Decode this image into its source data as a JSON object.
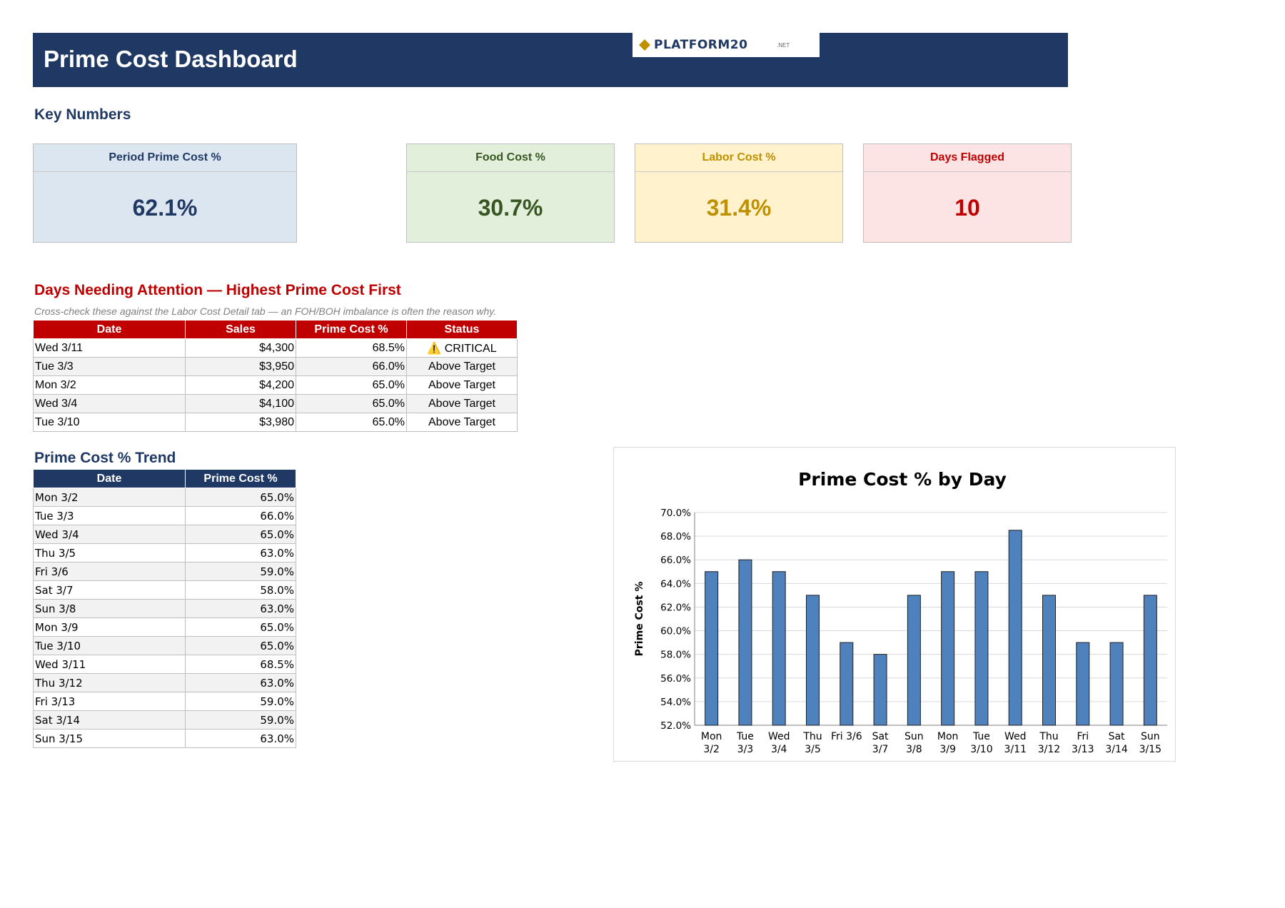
{
  "header": {
    "title": "Prime Cost Dashboard",
    "logo_name": "PLATFORM20",
    "logo_suffix": ".NET",
    "logo_color": "#bf9000"
  },
  "key_numbers": {
    "heading": "Key Numbers",
    "cards": [
      {
        "label": "Period Prime Cost %",
        "value": "62.1%",
        "bg": "#dce6f1",
        "color": "#203864"
      },
      {
        "label": "Food Cost %",
        "value": "30.7%",
        "bg": "#e2efda",
        "color": "#375623"
      },
      {
        "label": "Labor Cost %",
        "value": "31.4%",
        "bg": "#fff2cc",
        "color": "#bf9000"
      },
      {
        "label": "Days Flagged",
        "value": "10",
        "bg": "#fce4e4",
        "color": "#c00000"
      }
    ]
  },
  "attention": {
    "heading": "Days Needing Attention — Highest Prime Cost First",
    "note": "Cross-check these against the Labor Cost Detail tab — an FOH/BOH imbalance is often the reason why.",
    "columns": [
      "Date",
      "Sales",
      "Prime Cost %",
      "Status"
    ],
    "rows": [
      [
        "Wed 3/11",
        "$4,300",
        "68.5%",
        "⚠️ CRITICAL"
      ],
      [
        "Tue 3/3",
        "$3,950",
        "66.0%",
        "Above Target"
      ],
      [
        "Mon 3/2",
        "$4,200",
        "65.0%",
        "Above Target"
      ],
      [
        "Wed 3/4",
        "$4,100",
        "65.0%",
        "Above Target"
      ],
      [
        "Tue 3/10",
        "$3,980",
        "65.0%",
        "Above Target"
      ]
    ]
  },
  "trend": {
    "heading": "Prime Cost % Trend",
    "columns": [
      "Date",
      "Prime Cost %"
    ],
    "rows": [
      [
        "Mon 3/2",
        "65.0%"
      ],
      [
        "Tue 3/3",
        "66.0%"
      ],
      [
        "Wed 3/4",
        "65.0%"
      ],
      [
        "Thu 3/5",
        "63.0%"
      ],
      [
        "Fri 3/6",
        "59.0%"
      ],
      [
        "Sat 3/7",
        "58.0%"
      ],
      [
        "Sun 3/8",
        "63.0%"
      ],
      [
        "Mon 3/9",
        "65.0%"
      ],
      [
        "Tue 3/10",
        "65.0%"
      ],
      [
        "Wed 3/11",
        "68.5%"
      ],
      [
        "Thu 3/12",
        "63.0%"
      ],
      [
        "Fri 3/13",
        "59.0%"
      ],
      [
        "Sat 3/14",
        "59.0%"
      ],
      [
        "Sun 3/15",
        "63.0%"
      ]
    ]
  },
  "chart_data": {
    "type": "bar",
    "title": "Prime Cost % by Day",
    "xlabel": "",
    "ylabel": "Prime Cost %",
    "ylim": [
      52,
      70
    ],
    "ytick_step": 2,
    "ytick_labels": [
      "52.0%",
      "54.0%",
      "56.0%",
      "58.0%",
      "60.0%",
      "62.0%",
      "64.0%",
      "66.0%",
      "68.0%",
      "70.0%"
    ],
    "grid": true,
    "bar_color": "#4f81bd",
    "categories": [
      "Mon 3/2",
      "Tue 3/3",
      "Wed 3/4",
      "Thu 3/5",
      "Fri 3/6",
      "Sat 3/7",
      "Sun 3/8",
      "Mon 3/9",
      "Tue 3/10",
      "Wed 3/11",
      "Thu 3/12",
      "Fri 3/13",
      "Sat 3/14",
      "Sun 3/15"
    ],
    "values": [
      65.0,
      66.0,
      65.0,
      63.0,
      59.0,
      58.0,
      63.0,
      65.0,
      65.0,
      68.5,
      63.0,
      59.0,
      59.0,
      63.0
    ]
  }
}
